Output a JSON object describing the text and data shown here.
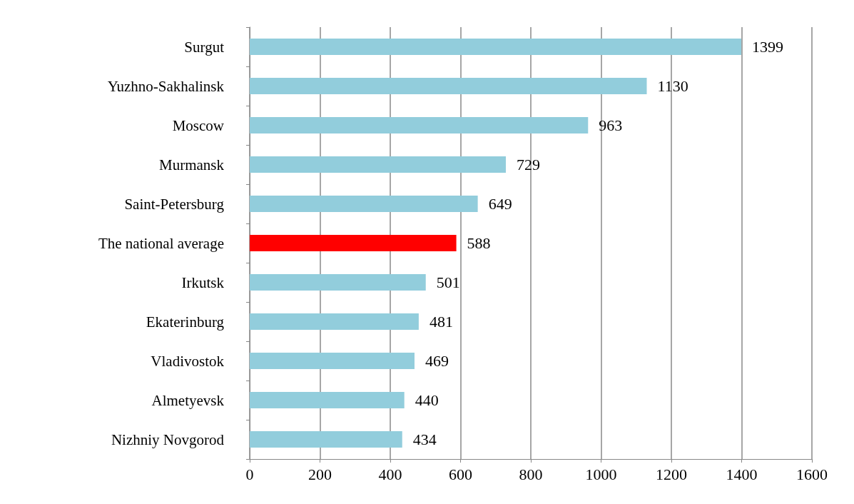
{
  "chart_data": {
    "type": "bar",
    "orientation": "horizontal",
    "categories": [
      "Surgut",
      "Yuzhno-Sakhalinsk",
      "Moscow",
      "Murmansk",
      "Saint-Petersburg",
      "The national average",
      "Irkutsk",
      "Ekaterinburg",
      "Vladivostok",
      "Almetyevsk",
      "Nizhniy Novgorod"
    ],
    "values": [
      1399,
      1130,
      963,
      729,
      649,
      588,
      501,
      481,
      469,
      440,
      434
    ],
    "colors": [
      "#92cddc",
      "#92cddc",
      "#92cddc",
      "#92cddc",
      "#92cddc",
      "#ff0000",
      "#92cddc",
      "#92cddc",
      "#92cddc",
      "#92cddc",
      "#92cddc"
    ],
    "xlim": [
      0,
      1600
    ],
    "xticks": [
      0,
      200,
      400,
      600,
      800,
      1000,
      1200,
      1400,
      1600
    ],
    "grid": "x",
    "data_labels": true
  }
}
